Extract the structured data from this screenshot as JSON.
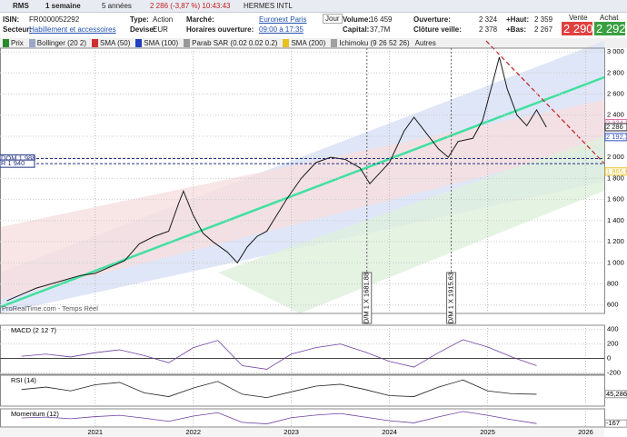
{
  "toolbar": {
    "symbol": "RMS",
    "period": "1 semaine",
    "range": "5 années",
    "quote": "2 286 (-3,87 %) 10:43:43",
    "name": "HERMES INTL"
  },
  "info": {
    "isin_label": "ISIN:",
    "isin": "FR0000052292",
    "sector_label": "Secteur:",
    "sector": "Habillement et accessoires",
    "type_label": "Type:",
    "type": "Action",
    "currency_label": "Devise:",
    "currency": "EUR",
    "market_label": "Marché:",
    "market": "Euronext Paris",
    "hours_label": "Horaires ouverture:",
    "hours": "09:00 à 17:35",
    "day": "Jour",
    "volume_label": "Volume:",
    "volume": "16 459",
    "capital_label": "Capital:",
    "capital": "37,7M",
    "open_label": "Ouverture:",
    "open": "2 324",
    "prev_label": "Clôture veille:",
    "prev": "2 378",
    "high_label": "+Haut:",
    "high": "2 359",
    "low_label": "+Bas:",
    "low": "2 267",
    "sell_label": "Vente",
    "sell": "2 290",
    "buy_label": "Achat",
    "buy": "2 292"
  },
  "indicators": [
    {
      "name": "Prix",
      "color": "#2a8a2a"
    },
    {
      "name": "Bollinger (20 2)",
      "color": "#9aa8c8"
    },
    {
      "name": "SMA (50)",
      "color": "#d03030"
    },
    {
      "name": "SMA (100)",
      "color": "#2040c0"
    },
    {
      "name": "Parab SAR (0.02 0.02 0.2)",
      "color": "#999999"
    },
    {
      "name": "SMA (200)",
      "color": "#e8c020"
    },
    {
      "name": "Ichimoku (9 26 52 26)",
      "color": "#a0a0a0"
    },
    {
      "name": "Autres",
      "color": null
    }
  ],
  "chart_data": [
    {
      "type": "line",
      "source": "ProRealTime.com - Temps Réel",
      "xlim": [
        2020.03,
        2026.19
      ],
      "xticks": [
        2021,
        2022,
        2023,
        2024,
        2025,
        2026
      ],
      "ylim": [
        520,
        3035
      ],
      "yticks": [
        {
          "value": 3000,
          "label": "3 000"
        },
        {
          "value": 2800,
          "label": "2 800"
        },
        {
          "value": 2600,
          "label": "2 600"
        },
        {
          "value": 2400,
          "label": "2 400"
        },
        {
          "value": 2200,
          "label": "2 200"
        },
        {
          "value": 2000,
          "label": "2 000"
        },
        {
          "value": 1800,
          "label": "1 800"
        },
        {
          "value": 1600,
          "label": "1 600"
        },
        {
          "value": 1400,
          "label": "1 400"
        },
        {
          "value": 1200,
          "label": "1 200"
        },
        {
          "value": 1000,
          "label": "1 000"
        },
        {
          "value": 800,
          "label": "800"
        },
        {
          "value": 600,
          "label": "600"
        }
      ],
      "x": [
        2020.1,
        2020.25,
        2020.4,
        2020.55,
        2020.7,
        2020.85,
        2021.0,
        2021.15,
        2021.3,
        2021.45,
        2021.6,
        2021.75,
        2021.85,
        2021.9,
        2022.0,
        2022.1,
        2022.2,
        2022.35,
        2022.45,
        2022.55,
        2022.65,
        2022.75,
        2022.85,
        2022.95,
        2023.1,
        2023.25,
        2023.4,
        2023.55,
        2023.7,
        2023.8,
        2023.9,
        2024.0,
        2024.15,
        2024.25,
        2024.4,
        2024.5,
        2024.6,
        2024.7,
        2024.85,
        2024.95,
        2025.05,
        2025.12,
        2025.2,
        2025.3,
        2025.4,
        2025.5,
        2025.6
      ],
      "series": [
        {
          "name": "Prix",
          "color": "#1a1a1a",
          "values": [
            640,
            700,
            760,
            800,
            840,
            880,
            900,
            960,
            1020,
            1180,
            1250,
            1300,
            1560,
            1680,
            1450,
            1280,
            1200,
            1100,
            1000,
            1150,
            1250,
            1300,
            1450,
            1600,
            1800,
            1950,
            2000,
            1980,
            1900,
            1750,
            1850,
            1950,
            2250,
            2380,
            2200,
            2080,
            2000,
            2150,
            2180,
            2350,
            2700,
            2950,
            2650,
            2400,
            2300,
            2450,
            2286
          ]
        }
      ],
      "price_labels": [
        {
          "value": 2324.2,
          "label": "2 324,2",
          "color": "#e070a0"
        },
        {
          "value": 2286,
          "label": "2 286",
          "color": "#222222"
        },
        {
          "value": 2192.3,
          "label": "2 192,3",
          "color": "#3050c0"
        },
        {
          "value": 1865.6,
          "label": "1 865,6",
          "color": "#e8c020"
        }
      ],
      "levels": [
        {
          "value": 1988,
          "label": "DOM 1 988"
        },
        {
          "value": 1940,
          "label": "R 1 940"
        }
      ],
      "markers": [
        {
          "x": 2023.77,
          "label": "D/M 1 X 1681.88"
        },
        {
          "x": 2024.63,
          "label": "D/M 1 X 1915.63"
        }
      ]
    },
    {
      "type": "line",
      "title": "MACD (2 12 7)",
      "ylim": [
        -220,
        460
      ],
      "yticks": [
        400,
        200,
        0,
        -200
      ],
      "x": [
        2020.25,
        2020.5,
        2020.75,
        2021.0,
        2021.25,
        2021.5,
        2021.75,
        2022.0,
        2022.25,
        2022.5,
        2022.75,
        2023.0,
        2023.25,
        2023.5,
        2023.75,
        2024.0,
        2024.25,
        2024.5,
        2024.75,
        2025.0,
        2025.25,
        2025.5
      ],
      "series": [
        {
          "name": "MACD",
          "color": "#7040a0",
          "values": [
            30,
            60,
            20,
            80,
            120,
            40,
            -60,
            150,
            250,
            -100,
            -150,
            60,
            150,
            200,
            90,
            -40,
            -120,
            80,
            260,
            160,
            20,
            -100
          ]
        }
      ]
    },
    {
      "type": "line",
      "title": "RSI (14)",
      "ylim": [
        20,
        85
      ],
      "last": {
        "value": 45.286,
        "label": "45,286"
      },
      "x": [
        2020.25,
        2020.5,
        2020.75,
        2021.0,
        2021.25,
        2021.5,
        2021.75,
        2022.0,
        2022.25,
        2022.5,
        2022.75,
        2023.0,
        2023.25,
        2023.5,
        2023.75,
        2024.0,
        2024.25,
        2024.5,
        2024.75,
        2025.0,
        2025.25,
        2025.5
      ],
      "series": [
        {
          "name": "RSI",
          "color": "#222222",
          "values": [
            55,
            60,
            52,
            65,
            70,
            48,
            40,
            58,
            72,
            45,
            38,
            50,
            62,
            66,
            55,
            42,
            40,
            60,
            75,
            52,
            46,
            45
          ]
        }
      ]
    },
    {
      "type": "line",
      "title": "Momentum (12)",
      "ylim": [
        -300,
        400
      ],
      "last": {
        "value": -167,
        "label": "-167"
      },
      "x": [
        2020.25,
        2020.5,
        2020.75,
        2021.0,
        2021.25,
        2021.5,
        2021.75,
        2022.0,
        2022.25,
        2022.5,
        2022.75,
        2023.0,
        2023.25,
        2023.5,
        2023.75,
        2024.0,
        2024.25,
        2024.5,
        2024.75,
        2025.0,
        2025.25,
        2025.5
      ],
      "series": [
        {
          "name": "Momentum",
          "color": "#7040a0",
          "values": [
            50,
            80,
            20,
            100,
            150,
            40,
            -80,
            120,
            250,
            -120,
            -180,
            60,
            160,
            220,
            80,
            -60,
            -140,
            90,
            300,
            150,
            -20,
            -167
          ]
        }
      ]
    }
  ]
}
